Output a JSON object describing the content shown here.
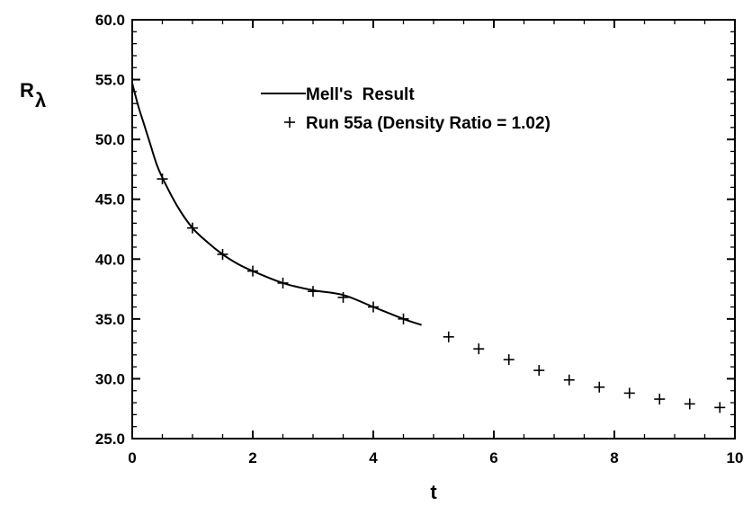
{
  "chart_data": {
    "type": "line",
    "title": "",
    "xlabel": "t",
    "ylabel": "R",
    "ylabel_subscript": "λ",
    "xlim": [
      0,
      10
    ],
    "ylim": [
      25.0,
      60.0
    ],
    "x_ticks": [
      "0",
      "2",
      "4",
      "6",
      "8",
      "10"
    ],
    "y_ticks": [
      "25.0",
      "30.0",
      "35.0",
      "40.0",
      "45.0",
      "50.0",
      "55.0",
      "60.0"
    ],
    "grid": false,
    "legend_position": "top-center",
    "series": [
      {
        "name": "Mell's  Result",
        "style": "line",
        "x": [
          0.0,
          0.1,
          0.2,
          0.3,
          0.4,
          0.5,
          0.75,
          1.0,
          1.25,
          1.5,
          1.75,
          2.0,
          2.5,
          3.0,
          3.5,
          4.0,
          4.5,
          4.8
        ],
        "y": [
          54.7,
          52.8,
          51.2,
          49.6,
          48.0,
          46.8,
          44.4,
          42.6,
          41.4,
          40.4,
          39.6,
          39.0,
          38.0,
          37.4,
          37.0,
          36.0,
          35.0,
          34.5
        ]
      },
      {
        "name": "Run 55a (Density Ratio = 1.02)",
        "style": "plus",
        "x": [
          0.5,
          1.0,
          1.5,
          2.0,
          2.5,
          3.0,
          3.5,
          4.0,
          4.5,
          5.25,
          5.75,
          6.25,
          6.75,
          7.25,
          7.75,
          8.25,
          8.75,
          9.25,
          9.75
        ],
        "y": [
          46.7,
          42.6,
          40.4,
          39.0,
          38.0,
          37.3,
          36.8,
          36.0,
          35.0,
          33.5,
          32.5,
          31.6,
          30.7,
          29.9,
          29.3,
          28.8,
          28.3,
          27.9,
          27.6
        ]
      }
    ]
  }
}
